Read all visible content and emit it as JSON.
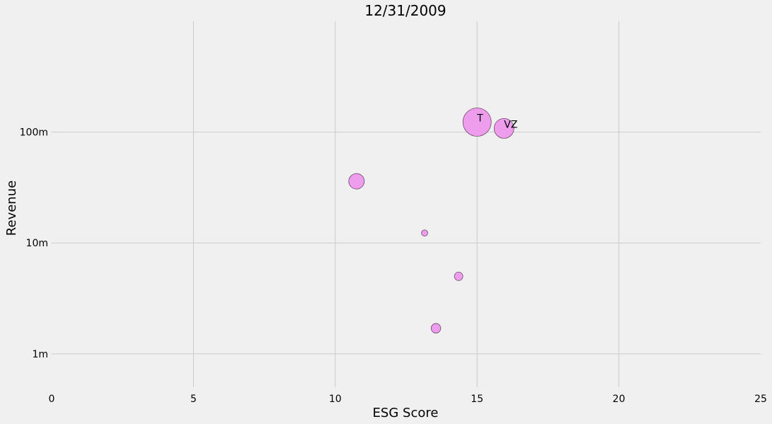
{
  "chart_data": {
    "type": "scatter",
    "title": "12/31/2009",
    "xlabel": "ESG Score",
    "ylabel": "Revenue",
    "xlim": [
      0,
      25
    ],
    "ylim": [
      0.5,
      1000
    ],
    "y_scale": "log",
    "x_ticks": [
      0,
      5,
      10,
      15,
      20,
      25
    ],
    "x_tick_labels": [
      "0",
      "5",
      "10",
      "15",
      "20",
      "25"
    ],
    "y_ticks": [
      1,
      10,
      100
    ],
    "y_tick_labels": [
      "1m",
      "10m",
      "100m"
    ],
    "grid": true,
    "color": "#ee9ded",
    "points": [
      {
        "x": 15.0,
        "y": 123,
        "size": 10.0,
        "label": "T"
      },
      {
        "x": 15.95,
        "y": 108,
        "size": 7.0,
        "label": "VZ"
      },
      {
        "x": 10.75,
        "y": 36,
        "size": 5.5,
        "label": ""
      },
      {
        "x": 13.15,
        "y": 12.3,
        "size": 2.2,
        "label": ""
      },
      {
        "x": 14.35,
        "y": 5.0,
        "size": 3.0,
        "label": ""
      },
      {
        "x": 13.55,
        "y": 1.7,
        "size": 3.4,
        "label": ""
      }
    ]
  }
}
